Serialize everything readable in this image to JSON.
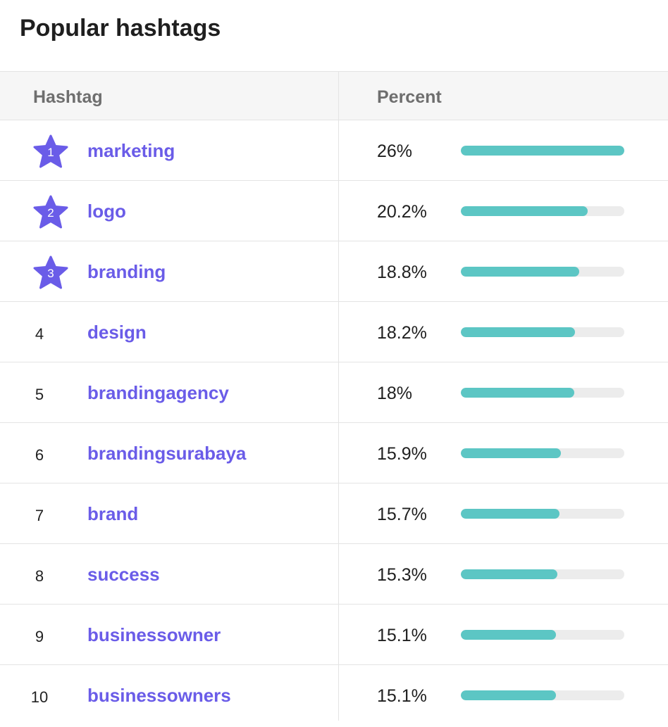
{
  "title": "Popular hashtags",
  "table": {
    "col_hashtag": "Hashtag",
    "col_percent": "Percent"
  },
  "colors": {
    "accent": "#6a5ce8",
    "bar": "#5cc6c4",
    "track": "#ececec"
  },
  "rows": [
    {
      "rank": "1",
      "tag": "marketing",
      "percent_label": "26%",
      "value": 26,
      "badge": "star-icon"
    },
    {
      "rank": "2",
      "tag": "logo",
      "percent_label": "20.2%",
      "value": 20.2,
      "badge": "star-icon"
    },
    {
      "rank": "3",
      "tag": "branding",
      "percent_label": "18.8%",
      "value": 18.8,
      "badge": "star-icon"
    },
    {
      "rank": "4",
      "tag": "design",
      "percent_label": "18.2%",
      "value": 18.2
    },
    {
      "rank": "5",
      "tag": "brandingagency",
      "percent_label": "18%",
      "value": 18
    },
    {
      "rank": "6",
      "tag": "brandingsurabaya",
      "percent_label": "15.9%",
      "value": 15.9
    },
    {
      "rank": "7",
      "tag": "brand",
      "percent_label": "15.7%",
      "value": 15.7
    },
    {
      "rank": "8",
      "tag": "success",
      "percent_label": "15.3%",
      "value": 15.3
    },
    {
      "rank": "9",
      "tag": "businessowner",
      "percent_label": "15.1%",
      "value": 15.1
    },
    {
      "rank": "10",
      "tag": "businessowners",
      "percent_label": "15.1%",
      "value": 15.1
    }
  ]
}
